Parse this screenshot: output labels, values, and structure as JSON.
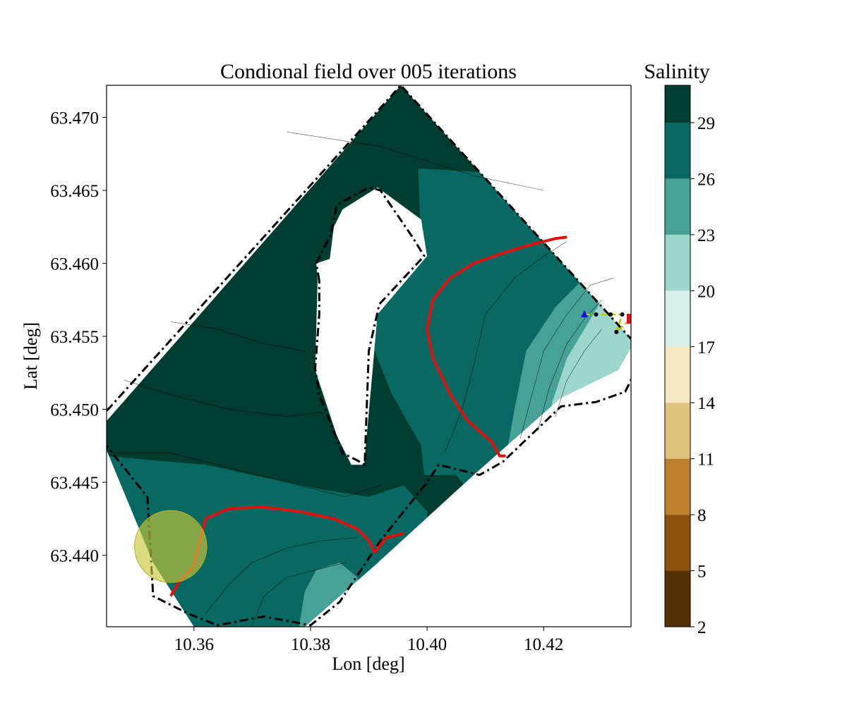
{
  "figure": {
    "title": "Condional field over 005 iterations",
    "xlabel": "Lon [deg]",
    "ylabel": "Lat [deg]"
  },
  "chart_data": {
    "type": "heatmap",
    "title": "Condional field over 005 iterations",
    "xlabel": "Lon [deg]",
    "ylabel": "Lat [deg]",
    "xlim": [
      10.345,
      10.435
    ],
    "ylim": [
      63.4351,
      63.4722
    ],
    "x_ticks": [
      {
        "value": 10.36,
        "label": "10.36"
      },
      {
        "value": 10.38,
        "label": "10.38"
      },
      {
        "value": 10.4,
        "label": "10.40"
      },
      {
        "value": 10.42,
        "label": "10.42"
      }
    ],
    "y_ticks": [
      {
        "value": 63.44,
        "label": "63.440"
      },
      {
        "value": 63.445,
        "label": "63.445"
      },
      {
        "value": 63.45,
        "label": "63.450"
      },
      {
        "value": 63.455,
        "label": "63.455"
      },
      {
        "value": 63.46,
        "label": "63.460"
      },
      {
        "value": 63.465,
        "label": "63.465"
      },
      {
        "value": 63.47,
        "label": "63.470"
      }
    ],
    "colorbar": {
      "label": "Salinity",
      "min": 2,
      "max": 31,
      "tick_labels": [
        "2",
        "5",
        "8",
        "11",
        "14",
        "17",
        "20",
        "23",
        "26",
        "29"
      ],
      "levels": [
        {
          "from": 2,
          "to": 5,
          "color": "#543005"
        },
        {
          "from": 5,
          "to": 8,
          "color": "#8c510a"
        },
        {
          "from": 8,
          "to": 11,
          "color": "#bf812d"
        },
        {
          "from": 11,
          "to": 14,
          "color": "#dfc27d"
        },
        {
          "from": 14,
          "to": 17,
          "color": "#f6e8c3"
        },
        {
          "from": 17,
          "to": 20,
          "color": "#d8eeea"
        },
        {
          "from": 20,
          "to": 23,
          "color": "#9dd7cc"
        },
        {
          "from": 23,
          "to": 26,
          "color": "#46a197"
        },
        {
          "from": 26,
          "to": 29,
          "color": "#086963"
        },
        {
          "from": 29,
          "to": 31,
          "color": "#003c30"
        }
      ]
    },
    "domain_polygon": [
      [
        10.345,
        63.4492
      ],
      [
        10.3955,
        63.4722
      ],
      [
        10.4355,
        63.4546
      ],
      [
        10.4328,
        63.4527
      ],
      [
        10.423,
        63.4508
      ],
      [
        10.408,
        63.4455
      ],
      [
        10.391,
        63.4393
      ],
      [
        10.379,
        63.4351
      ],
      [
        10.36,
        63.4351
      ],
      [
        10.353,
        63.4395
      ],
      [
        10.345,
        63.4472
      ]
    ],
    "island_polygon": [
      [
        10.3855,
        63.4637
      ],
      [
        10.3915,
        63.4652
      ],
      [
        10.399,
        63.463
      ],
      [
        10.4,
        63.4605
      ],
      [
        10.3915,
        63.4565
      ],
      [
        10.3892,
        63.4462
      ],
      [
        10.387,
        63.4462
      ],
      [
        10.3845,
        63.4482
      ],
      [
        10.3808,
        63.4527
      ],
      [
        10.3812,
        63.4588
      ],
      [
        10.381,
        63.46
      ],
      [
        10.3833,
        63.4603
      ],
      [
        10.384,
        63.4625
      ]
    ],
    "boundary_line": [
      [
        10.343,
        63.449
      ],
      [
        10.3955,
        63.4722
      ],
      [
        10.4355,
        63.4546
      ],
      [
        10.4355,
        63.4524
      ],
      [
        10.434,
        63.4512
      ],
      [
        10.429,
        63.4505
      ],
      [
        10.423,
        63.4502
      ],
      [
        10.413,
        63.4464
      ],
      [
        10.409,
        63.4455
      ],
      [
        10.402,
        63.4462
      ],
      [
        10.4,
        63.445
      ],
      [
        10.392,
        63.441
      ],
      [
        10.385,
        63.4368
      ],
      [
        10.38,
        63.4352
      ],
      [
        10.372,
        63.4358
      ],
      [
        10.364,
        63.4352
      ],
      [
        10.359,
        63.436
      ],
      [
        10.353,
        63.4372
      ],
      [
        10.352,
        63.444
      ],
      [
        10.348,
        63.446
      ],
      [
        10.345,
        63.4475
      ]
    ],
    "island_boundary_line": [
      [
        10.3815,
        63.4588
      ],
      [
        10.381,
        63.46
      ],
      [
        10.3835,
        63.462
      ],
      [
        10.3845,
        63.464
      ],
      [
        10.39,
        63.4652
      ],
      [
        10.392,
        63.465
      ],
      [
        10.3975,
        63.4618
      ],
      [
        10.3995,
        63.4605
      ],
      [
        10.3918,
        63.4572
      ],
      [
        10.39,
        63.454
      ],
      [
        10.3893,
        63.4462
      ],
      [
        10.388,
        63.4465
      ],
      [
        10.3855,
        63.447
      ],
      [
        10.3815,
        63.451
      ],
      [
        10.3808,
        63.4528
      ],
      [
        10.3815,
        63.4565
      ]
    ],
    "threshold_contours": [
      {
        "name": "",
        "color": "#e01010",
        "points": [
          [
            10.424,
            63.4618
          ],
          [
            10.422,
            63.4617
          ],
          [
            10.418,
            63.4613
          ],
          [
            10.413,
            63.4607
          ],
          [
            10.408,
            63.46
          ],
          [
            10.404,
            63.459
          ],
          [
            10.401,
            63.4575
          ],
          [
            10.4,
            63.4555
          ],
          [
            10.401,
            63.4535
          ],
          [
            10.404,
            63.451
          ],
          [
            10.407,
            63.4492
          ],
          [
            10.411,
            63.4478
          ],
          [
            10.4125,
            63.4468
          ],
          [
            10.4135,
            63.4468
          ]
        ]
      },
      {
        "name": "",
        "color": "#e01010",
        "points": [
          [
            10.356,
            63.4372
          ],
          [
            10.3575,
            63.4382
          ],
          [
            10.36,
            63.4393
          ],
          [
            10.362,
            63.4425
          ],
          [
            10.366,
            63.4432
          ],
          [
            10.372,
            63.4433
          ],
          [
            10.378,
            63.443
          ],
          [
            10.384,
            63.4425
          ],
          [
            10.388,
            63.4418
          ],
          [
            10.39,
            63.441
          ],
          [
            10.391,
            63.4402
          ],
          [
            10.393,
            63.4412
          ],
          [
            10.396,
            63.4415
          ]
        ]
      }
    ],
    "contour_isolines": [
      [
        [
          10.403,
          63.447
        ],
        [
          10.406,
          63.45
        ],
        [
          10.408,
          63.453
        ],
        [
          10.41,
          63.4565
        ],
        [
          10.415,
          63.459
        ],
        [
          10.42,
          63.4605
        ],
        [
          10.424,
          63.4615
        ]
      ],
      [
        [
          10.416,
          63.448
        ],
        [
          10.418,
          63.451
        ],
        [
          10.42,
          63.454
        ],
        [
          10.424,
          63.4565
        ],
        [
          10.428,
          63.4585
        ],
        [
          10.432,
          63.459
        ]
      ],
      [
        [
          10.419,
          63.4485
        ],
        [
          10.421,
          63.4515
        ],
        [
          10.424,
          63.4545
        ],
        [
          10.427,
          63.4562
        ],
        [
          10.43,
          63.4575
        ]
      ],
      [
        [
          10.422,
          63.4495
        ],
        [
          10.424,
          63.452
        ],
        [
          10.427,
          63.454
        ],
        [
          10.43,
          63.4555
        ]
      ],
      [
        [
          10.362,
          63.436
        ],
        [
          10.366,
          63.438
        ],
        [
          10.37,
          63.4395
        ],
        [
          10.376,
          63.4405
        ],
        [
          10.382,
          63.441
        ],
        [
          10.388,
          63.4412
        ]
      ],
      [
        [
          10.37,
          63.4352
        ],
        [
          10.372,
          63.4372
        ],
        [
          10.376,
          63.4385
        ],
        [
          10.381,
          63.439
        ],
        [
          10.386,
          63.4395
        ]
      ],
      [
        [
          10.346,
          63.447
        ],
        [
          10.356,
          63.447
        ],
        [
          10.366,
          63.446
        ],
        [
          10.376,
          63.445
        ],
        [
          10.386,
          63.444
        ],
        [
          10.392,
          63.4448
        ]
      ],
      [
        [
          10.348,
          63.452
        ],
        [
          10.356,
          63.451
        ],
        [
          10.366,
          63.45
        ],
        [
          10.376,
          63.4495
        ],
        [
          10.382,
          63.4498
        ]
      ],
      [
        [
          10.356,
          63.456
        ],
        [
          10.364,
          63.4555
        ],
        [
          10.372,
          63.4545
        ],
        [
          10.379,
          63.454
        ]
      ],
      [
        [
          10.376,
          63.469
        ],
        [
          10.384,
          63.4685
        ],
        [
          10.392,
          63.468
        ],
        [
          10.4,
          63.467
        ],
        [
          10.408,
          63.466
        ],
        [
          10.42,
          63.465
        ]
      ]
    ],
    "trajectory": {
      "start": {
        "lon": 10.427,
        "lat": 63.4565
      },
      "points": [
        [
          10.429,
          63.4565
        ],
        [
          10.4315,
          63.4565
        ],
        [
          10.4335,
          63.4565
        ],
        [
          10.4325,
          63.4553
        ]
      ],
      "end": {
        "lon": 10.435,
        "lat": 63.4562
      }
    },
    "circle": {
      "lon": 10.356,
      "lat": 63.4406,
      "radius_deg_lon": 0.0062
    }
  }
}
